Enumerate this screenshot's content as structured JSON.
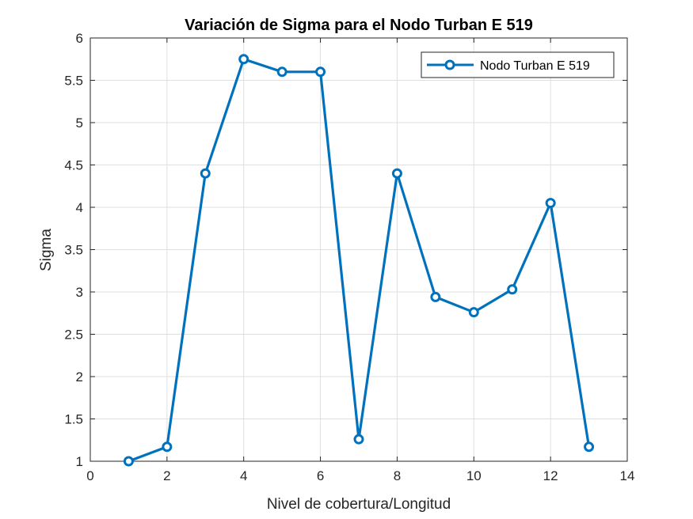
{
  "chart_data": {
    "type": "line",
    "title": "Variación de Sigma para el Nodo Turban E 519",
    "xlabel": "Nivel de cobertura/Longitud",
    "ylabel": "Sigma",
    "xlim": [
      0,
      14
    ],
    "ylim": [
      1,
      6
    ],
    "xticks": [
      0,
      2,
      4,
      6,
      8,
      10,
      12,
      14
    ],
    "yticks": [
      1,
      1.5,
      2,
      2.5,
      3,
      3.5,
      4,
      4.5,
      5,
      5.5,
      6
    ],
    "xtick_labels": [
      "0",
      "2",
      "4",
      "6",
      "8",
      "10",
      "12",
      "14"
    ],
    "ytick_labels": [
      "1",
      "1.5",
      "2",
      "2.5",
      "3",
      "3.5",
      "4",
      "4.5",
      "5",
      "5.5",
      "6"
    ],
    "grid": true,
    "legend_position": "top-right",
    "series": [
      {
        "name": "Nodo Turban E 519",
        "color": "#0072BD",
        "marker": "circle",
        "x": [
          1,
          2,
          3,
          4,
          5,
          6,
          7,
          8,
          9,
          10,
          11,
          12,
          13
        ],
        "y": [
          1.0,
          1.17,
          4.4,
          5.75,
          5.6,
          5.6,
          1.26,
          4.4,
          2.94,
          2.76,
          3.03,
          4.05,
          1.17
        ]
      }
    ]
  }
}
